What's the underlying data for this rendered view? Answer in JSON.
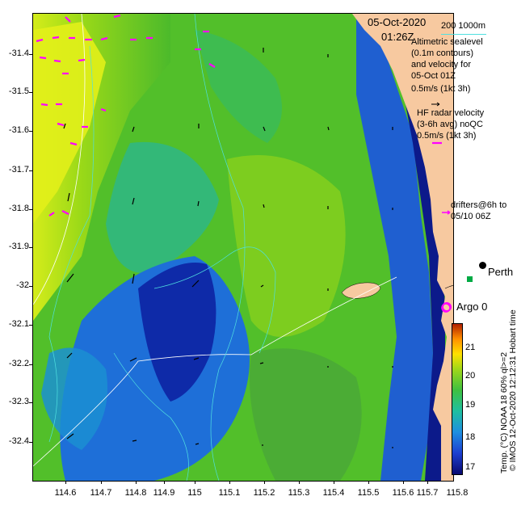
{
  "header": {
    "date": "05-Oct-2020",
    "time": "01:26Z",
    "depth_legend": "200  1000m"
  },
  "legend": {
    "altimetric_lines": [
      "Altimetric sealevel",
      "(0.1m contours)",
      "and velocity for",
      "05-Oct 01Z",
      "0.5m/s (1kt 3h)"
    ],
    "hf_lines": [
      "HF radar velocity",
      "(3-6h avg) noQC",
      "0.5m/s (1kt 3h)"
    ],
    "drifters_lines": [
      "drifters@6h to",
      "05/10 06Z"
    ]
  },
  "places": {
    "city": "Perth",
    "argo": "Argo 0"
  },
  "axes": {
    "y_ticks": [
      "-31.4",
      "-31.5",
      "-31.6",
      "-31.7",
      "-31.8",
      "-31.9",
      "-32",
      "-32.1",
      "-32.2",
      "-32.3",
      "-32.4"
    ],
    "x_ticks": [
      "114.6",
      "114.7",
      "114.8",
      "114.9",
      "115",
      "115.1",
      "115.2",
      "115.3",
      "115.4",
      "115.5",
      "115.6",
      "115.7",
      "115.8"
    ]
  },
  "colorbar": {
    "ticks": [
      "21",
      "20",
      "19",
      "18",
      "17"
    ],
    "label": "Temp. (°C) NOAA 18 60% ql>=2",
    "range": [
      16.6,
      21.8
    ]
  },
  "credits": {
    "imos": "© IMOS 12-Oct-2020 12:12:31 Hobart time"
  },
  "colors": {
    "land": "#f7c9a0",
    "hf_vector": "#ff00ff",
    "contour": "#4fe0e0",
    "bathymetry": "#ffffff"
  }
}
